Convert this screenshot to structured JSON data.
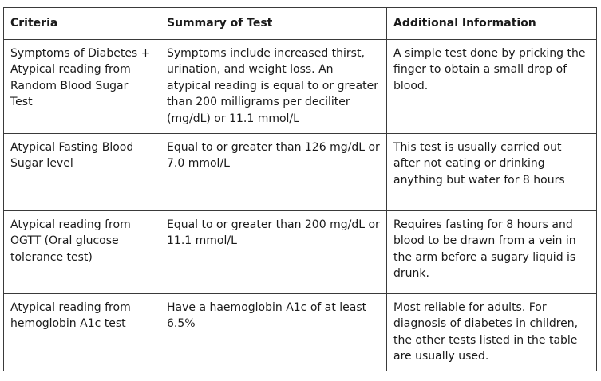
{
  "table": {
    "headers": [
      "Criteria",
      "Summary of Test",
      "Additional Information"
    ],
    "rows": [
      [
        "Symptoms of Diabetes + Atypical reading from Random Blood Sugar Test",
        "Symptoms include increased thirst, urination, and weight loss. An atypical reading is equal to or greater than 200 milligrams per deciliter (mg/dL) or 11.1 mmol/L",
        "A simple test done by pricking the finger to obtain a small drop of blood."
      ],
      [
        "Atypical Fasting Blood Sugar level",
        "Equal to or greater than 126 mg/dL or 7.0 mmol/L",
        "This test is usually carried out after not eating or drinking anything but water for 8 hours"
      ],
      [
        "Atypical reading from OGTT (Oral glucose tolerance test)",
        "Equal to or greater than 200 mg/dL or 11.1 mmol/L",
        "Requires fasting for 8 hours and blood to be drawn from a vein in the arm before a sugary liquid is drunk."
      ],
      [
        "Atypical reading from hemoglobin A1c test",
        "Have a haemoglobin A1c of at least 6.5%",
        "Most reliable for adults. For diagnosis of diabetes in children, the other tests listed in the table are usually used."
      ]
    ]
  }
}
